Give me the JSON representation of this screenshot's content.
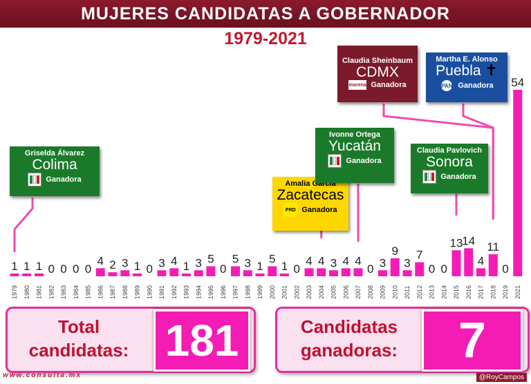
{
  "title": "MUJERES CANDIDATAS A GOBERNADOR",
  "subtitle": "1979-2021",
  "chart_data": {
    "type": "bar",
    "categories": [
      "1979",
      "1980",
      "1981",
      "1982",
      "1983",
      "1984",
      "1985",
      "1986",
      "1987",
      "1988",
      "1989",
      "1990",
      "1991",
      "1992",
      "1993",
      "1994",
      "1995",
      "1996",
      "1997",
      "1998",
      "1999",
      "2000",
      "2001",
      "2002",
      "2003",
      "2004",
      "2005",
      "2006",
      "2007",
      "2008",
      "2009",
      "2010",
      "2011",
      "2012",
      "2013",
      "2014",
      "2015",
      "2016",
      "2017",
      "2018",
      "2019",
      "2021"
    ],
    "values": [
      1,
      1,
      1,
      0,
      0,
      0,
      0,
      4,
      2,
      3,
      1,
      0,
      3,
      4,
      1,
      3,
      5,
      0,
      5,
      3,
      1,
      5,
      1,
      0,
      4,
      4,
      3,
      4,
      4,
      0,
      3,
      9,
      3,
      7,
      0,
      0,
      13,
      14,
      4,
      11,
      0,
      54
    ],
    "bar_color": "#f51cb6"
  },
  "winners": [
    {
      "name": "Griselda Álvarez",
      "state": "Colima",
      "status": "Ganadora",
      "party": "PRI",
      "year": "1979",
      "color": "#1a7a2a"
    },
    {
      "name": "Amalia García",
      "state": "Zacatecas",
      "status": "Ganadora",
      "party": "PRD",
      "year": "2004",
      "color": "#ffd700"
    },
    {
      "name": "Ivonne Ortega",
      "state": "Yucatán",
      "status": "Ganadora",
      "party": "PRI",
      "year": "2007",
      "color": "#1a7a2a"
    },
    {
      "name": "Claudia Pavlovich",
      "state": "Sonora",
      "status": "Ganadora",
      "party": "PRI",
      "year": "2015",
      "color": "#1a7a2a"
    },
    {
      "name": "Claudia Sheinbaum",
      "state": "CDMX",
      "status": "Ganadora",
      "party": "morena",
      "year": "2018",
      "color": "#7a1a2a"
    },
    {
      "name": "Martha E. Alonso",
      "state": "Puebla",
      "status": "Ganadora",
      "party": "PAN",
      "year": "2018",
      "color": "#1a4fa0"
    }
  ],
  "totals": {
    "total_label_1": "Total",
    "total_label_2": "candidatas:",
    "total_value": "181",
    "winners_label_1": "Candidatas",
    "winners_label_2": "ganadoras:",
    "winners_value": "7"
  },
  "footer": {
    "website": "www.consulta.mx",
    "handle": "@RoyCampos"
  }
}
